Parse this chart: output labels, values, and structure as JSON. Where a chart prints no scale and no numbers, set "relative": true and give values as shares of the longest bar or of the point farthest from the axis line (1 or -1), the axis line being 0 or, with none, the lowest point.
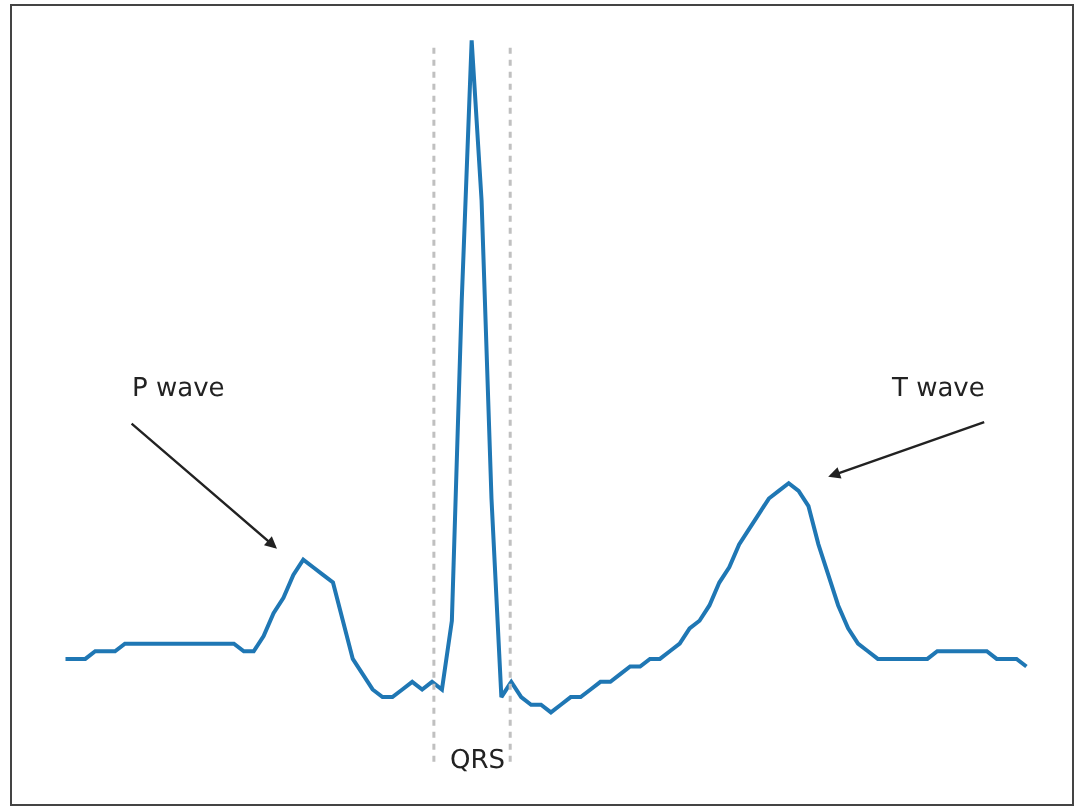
{
  "chart_data": {
    "type": "line",
    "relative": true,
    "line_style": "solid",
    "categories": [
      null,
      null,
      null,
      null,
      null,
      null,
      null,
      null,
      null,
      null,
      null,
      null,
      null,
      null,
      null,
      null,
      null,
      null,
      null,
      null,
      null,
      null,
      null,
      null,
      null,
      null,
      null,
      null,
      null,
      null,
      null,
      null,
      null,
      null,
      null,
      null,
      null,
      null,
      null,
      null,
      null,
      null,
      null,
      null,
      null,
      null,
      null,
      null,
      null,
      null,
      null,
      null,
      null,
      null,
      null,
      null,
      null,
      null,
      null,
      null,
      null,
      null,
      null,
      null,
      null,
      null,
      null,
      null,
      null,
      null,
      null,
      null,
      null,
      null,
      null,
      null,
      null,
      null,
      null,
      null,
      null,
      null,
      null,
      null,
      null,
      null,
      null,
      null,
      null,
      null,
      null,
      null,
      null,
      null,
      null,
      null,
      null,
      null
    ],
    "series": [
      {
        "color": "#1f77b4",
        "values": [
          0.19,
          0.19,
          0.19,
          0.2,
          0.2,
          0.2,
          0.21,
          0.21,
          0.21,
          0.21,
          0.21,
          0.21,
          0.21,
          0.21,
          0.21,
          0.21,
          0.21,
          0.21,
          0.2,
          0.2,
          0.22,
          0.25,
          0.27,
          0.3,
          0.32,
          0.31,
          0.3,
          0.29,
          0.24,
          0.19,
          0.17,
          0.15,
          0.14,
          0.14,
          0.15,
          0.16,
          0.15,
          0.16,
          0.15,
          0.24,
          0.66,
          1,
          0.79,
          0.4,
          0.14,
          0.16,
          0.14,
          0.13,
          0.13,
          0.12,
          0.13,
          0.14,
          0.14,
          0.15,
          0.16,
          0.16,
          0.17,
          0.18,
          0.18,
          0.19,
          0.19,
          0.2,
          0.21,
          0.23,
          0.24,
          0.26,
          0.29,
          0.31,
          0.34,
          0.36,
          0.38,
          0.4,
          0.41,
          0.42,
          0.41,
          0.39,
          0.34,
          0.3,
          0.26,
          0.23,
          0.21,
          0.2,
          0.19,
          0.19,
          0.19,
          0.19,
          0.19,
          0.19,
          0.2,
          0.2,
          0.2,
          0.2,
          0.2,
          0.2,
          0.19,
          0.19,
          0.19,
          0.18
        ]
      }
    ],
    "annotations": [
      "P wave",
      "T wave",
      "QRS"
    ]
  }
}
